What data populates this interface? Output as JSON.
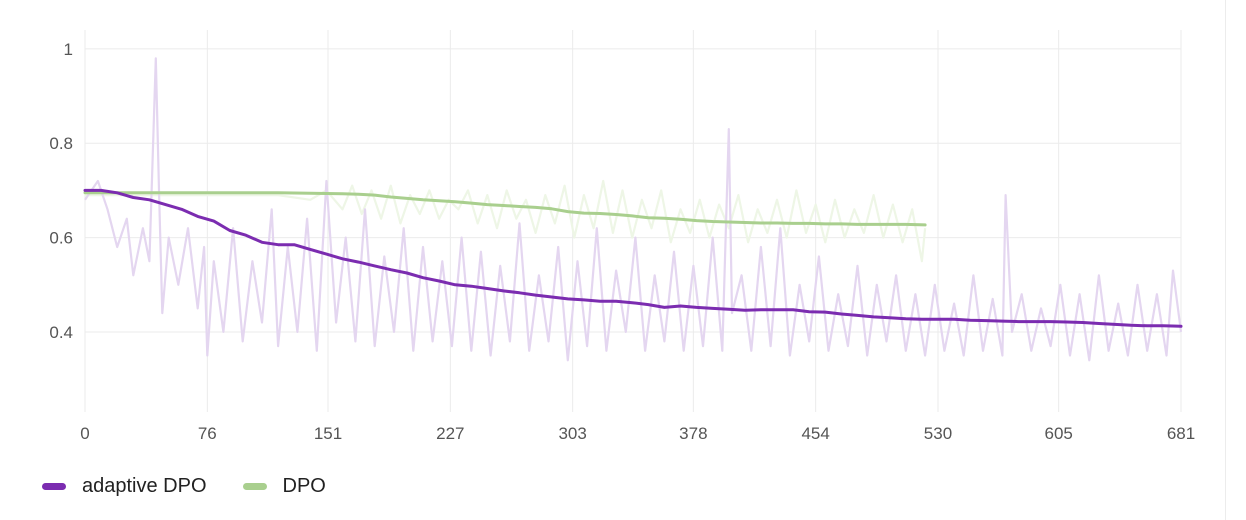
{
  "chart_data": {
    "type": "line",
    "title": "",
    "xlabel": "",
    "ylabel": "",
    "xlim": [
      0,
      681
    ],
    "ylim": [
      0.26,
      1.04
    ],
    "x_ticks": [
      0,
      76,
      151,
      227,
      303,
      378,
      454,
      530,
      605,
      681
    ],
    "x_tick_labels": [
      "0",
      "76",
      "151",
      "227",
      "303",
      "378",
      "454",
      "530",
      "605",
      "681"
    ],
    "y_ticks": [
      0.4,
      0.6,
      0.8,
      1.0
    ],
    "y_tick_labels": [
      "0.4",
      "0.6",
      "0.8",
      "1"
    ],
    "grid": true,
    "legend_position": "bottom-left",
    "series": [
      {
        "name": "adaptive DPO",
        "color": "#7b2cb0",
        "raw_color": "#e4d6f0",
        "smoothed": {
          "x": [
            0,
            10,
            20,
            30,
            40,
            50,
            60,
            70,
            80,
            90,
            100,
            110,
            120,
            130,
            140,
            150,
            160,
            170,
            180,
            190,
            200,
            210,
            220,
            230,
            240,
            250,
            260,
            270,
            280,
            290,
            300,
            310,
            320,
            330,
            340,
            350,
            360,
            370,
            380,
            390,
            400,
            410,
            420,
            430,
            440,
            450,
            460,
            470,
            480,
            490,
            500,
            510,
            520,
            530,
            540,
            550,
            560,
            570,
            580,
            590,
            600,
            610,
            620,
            630,
            640,
            650,
            660,
            670,
            681
          ],
          "y": [
            0.7,
            0.7,
            0.695,
            0.685,
            0.68,
            0.67,
            0.66,
            0.645,
            0.635,
            0.615,
            0.605,
            0.59,
            0.585,
            0.585,
            0.575,
            0.565,
            0.555,
            0.548,
            0.54,
            0.532,
            0.525,
            0.515,
            0.508,
            0.5,
            0.497,
            0.492,
            0.487,
            0.483,
            0.478,
            0.474,
            0.47,
            0.468,
            0.465,
            0.465,
            0.462,
            0.458,
            0.452,
            0.455,
            0.452,
            0.45,
            0.448,
            0.446,
            0.447,
            0.447,
            0.447,
            0.443,
            0.442,
            0.438,
            0.435,
            0.432,
            0.43,
            0.428,
            0.427,
            0.427,
            0.427,
            0.425,
            0.424,
            0.423,
            0.422,
            0.422,
            0.422,
            0.421,
            0.42,
            0.418,
            0.416,
            0.414,
            0.413,
            0.413,
            0.412
          ]
        },
        "raw": {
          "x": [
            0,
            8,
            14,
            20,
            26,
            30,
            36,
            40,
            44,
            46,
            48,
            52,
            58,
            64,
            70,
            74,
            76,
            80,
            86,
            92,
            98,
            104,
            110,
            116,
            120,
            126,
            132,
            138,
            144,
            150,
            156,
            162,
            168,
            174,
            180,
            186,
            192,
            198,
            204,
            210,
            216,
            222,
            228,
            234,
            240,
            246,
            252,
            258,
            264,
            270,
            276,
            282,
            288,
            294,
            300,
            306,
            312,
            318,
            324,
            330,
            336,
            342,
            348,
            354,
            360,
            366,
            372,
            378,
            384,
            390,
            396,
            400,
            402,
            408,
            414,
            420,
            426,
            432,
            438,
            444,
            450,
            456,
            462,
            468,
            474,
            480,
            486,
            492,
            498,
            504,
            510,
            516,
            522,
            528,
            534,
            540,
            546,
            552,
            558,
            564,
            570,
            572,
            576,
            582,
            588,
            594,
            600,
            606,
            612,
            618,
            624,
            630,
            636,
            642,
            648,
            654,
            660,
            666,
            672,
            676,
            681
          ],
          "y": [
            0.68,
            0.72,
            0.66,
            0.58,
            0.64,
            0.52,
            0.62,
            0.55,
            0.98,
            0.7,
            0.44,
            0.6,
            0.5,
            0.62,
            0.45,
            0.58,
            0.35,
            0.55,
            0.4,
            0.62,
            0.38,
            0.55,
            0.42,
            0.66,
            0.37,
            0.58,
            0.4,
            0.64,
            0.36,
            0.72,
            0.42,
            0.6,
            0.38,
            0.66,
            0.37,
            0.56,
            0.4,
            0.62,
            0.36,
            0.58,
            0.38,
            0.55,
            0.37,
            0.6,
            0.36,
            0.57,
            0.35,
            0.54,
            0.38,
            0.63,
            0.36,
            0.52,
            0.38,
            0.58,
            0.34,
            0.55,
            0.37,
            0.62,
            0.36,
            0.53,
            0.4,
            0.6,
            0.36,
            0.52,
            0.38,
            0.57,
            0.36,
            0.54,
            0.37,
            0.6,
            0.36,
            0.83,
            0.44,
            0.52,
            0.36,
            0.58,
            0.37,
            0.62,
            0.35,
            0.5,
            0.38,
            0.56,
            0.36,
            0.48,
            0.37,
            0.54,
            0.35,
            0.5,
            0.38,
            0.52,
            0.36,
            0.48,
            0.35,
            0.5,
            0.36,
            0.46,
            0.35,
            0.52,
            0.36,
            0.47,
            0.35,
            0.69,
            0.4,
            0.48,
            0.36,
            0.45,
            0.37,
            0.5,
            0.35,
            0.48,
            0.34,
            0.52,
            0.36,
            0.46,
            0.35,
            0.5,
            0.36,
            0.48,
            0.35,
            0.53,
            0.4
          ]
        }
      },
      {
        "name": "DPO",
        "color": "#a9cf8e",
        "raw_color": "#eef6e6",
        "smoothed": {
          "x": [
            0,
            20,
            40,
            60,
            80,
            100,
            120,
            140,
            160,
            170,
            180,
            190,
            200,
            210,
            220,
            230,
            240,
            250,
            260,
            270,
            280,
            290,
            300,
            310,
            320,
            330,
            340,
            350,
            360,
            370,
            380,
            390,
            400,
            410,
            420,
            430,
            440,
            450,
            460,
            470,
            480,
            490,
            500,
            510,
            522
          ],
          "y": [
            0.695,
            0.695,
            0.695,
            0.695,
            0.695,
            0.695,
            0.695,
            0.694,
            0.693,
            0.692,
            0.69,
            0.686,
            0.683,
            0.68,
            0.678,
            0.676,
            0.673,
            0.67,
            0.668,
            0.666,
            0.664,
            0.661,
            0.655,
            0.652,
            0.651,
            0.649,
            0.646,
            0.642,
            0.641,
            0.639,
            0.636,
            0.634,
            0.633,
            0.632,
            0.631,
            0.631,
            0.63,
            0.63,
            0.629,
            0.629,
            0.628,
            0.628,
            0.628,
            0.628,
            0.627
          ]
        },
        "raw": {
          "x": [
            0,
            40,
            80,
            120,
            140,
            150,
            160,
            166,
            172,
            178,
            184,
            190,
            196,
            202,
            208,
            214,
            220,
            226,
            232,
            238,
            244,
            250,
            256,
            262,
            268,
            274,
            280,
            286,
            292,
            298,
            304,
            310,
            316,
            322,
            328,
            334,
            340,
            346,
            352,
            358,
            364,
            370,
            376,
            382,
            388,
            394,
            400,
            406,
            412,
            418,
            424,
            430,
            436,
            442,
            448,
            454,
            460,
            466,
            472,
            478,
            484,
            490,
            496,
            502,
            508,
            514,
            520,
            522
          ],
          "y": [
            0.69,
            0.69,
            0.69,
            0.69,
            0.68,
            0.7,
            0.66,
            0.71,
            0.65,
            0.7,
            0.64,
            0.71,
            0.63,
            0.69,
            0.65,
            0.7,
            0.64,
            0.68,
            0.66,
            0.7,
            0.63,
            0.69,
            0.62,
            0.7,
            0.64,
            0.68,
            0.61,
            0.69,
            0.63,
            0.71,
            0.6,
            0.69,
            0.62,
            0.72,
            0.61,
            0.7,
            0.6,
            0.68,
            0.62,
            0.7,
            0.59,
            0.66,
            0.61,
            0.68,
            0.6,
            0.67,
            0.62,
            0.69,
            0.59,
            0.66,
            0.61,
            0.68,
            0.6,
            0.7,
            0.61,
            0.67,
            0.59,
            0.68,
            0.6,
            0.66,
            0.61,
            0.69,
            0.6,
            0.67,
            0.59,
            0.66,
            0.55,
            0.62
          ]
        }
      }
    ]
  }
}
